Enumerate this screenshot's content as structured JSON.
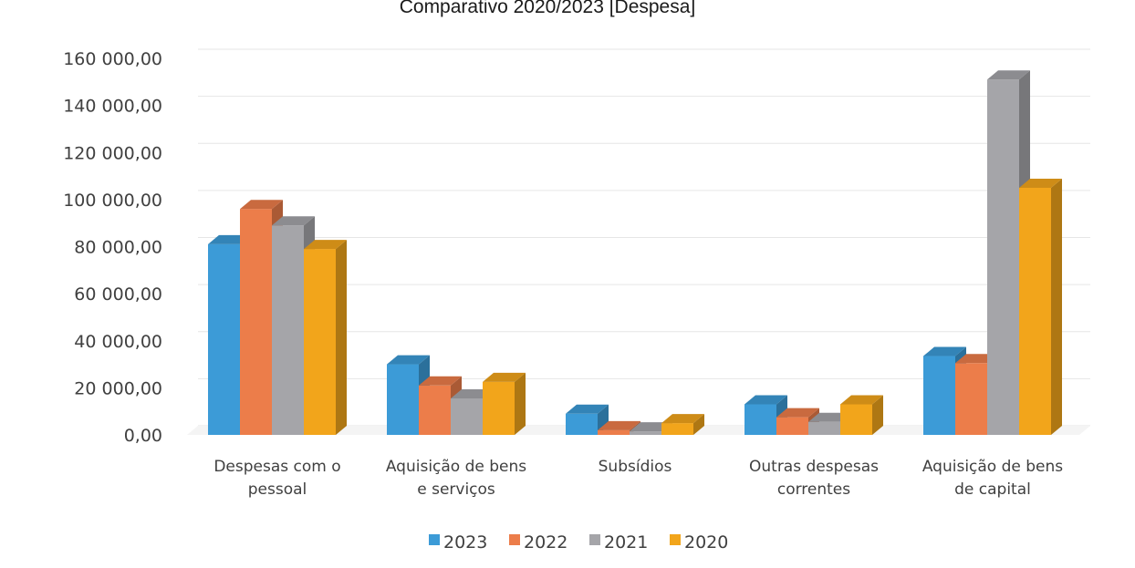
{
  "chart_data": {
    "type": "bar",
    "title": "Comparativo 2020/2023 [Despesa]",
    "categories": [
      [
        "Despesas com o",
        "pessoal"
      ],
      [
        "Aquisição de bens",
        "e serviços"
      ],
      [
        "Subsídios"
      ],
      [
        "Outras despesas",
        "correntes"
      ],
      [
        "Aquisição de bens",
        "de capital"
      ]
    ],
    "series": [
      {
        "name": "2023",
        "color": "#3C9BD7",
        "values": [
          81000,
          30000,
          9000,
          13000,
          33500
        ]
      },
      {
        "name": "2022",
        "color": "#EC7D4A",
        "values": [
          96000,
          21000,
          2000,
          7500,
          30500
        ]
      },
      {
        "name": "2021",
        "color": "#A5A5A9",
        "values": [
          89000,
          15500,
          1500,
          5500,
          151000
        ]
      },
      {
        "name": "2020",
        "color": "#F2A51B",
        "values": [
          79000,
          22500,
          5000,
          13000,
          105000
        ]
      }
    ],
    "y_ticks": [
      "0,00",
      "20 000,00",
      "40 000,00",
      "60 000,00",
      "80 000,00",
      "100 000,00",
      "120 000,00",
      "140 000,00",
      "160 000,00"
    ],
    "ylim": [
      0,
      160000
    ],
    "grid": true,
    "legend_position": "bottom",
    "style": "3d-clustered-column"
  }
}
